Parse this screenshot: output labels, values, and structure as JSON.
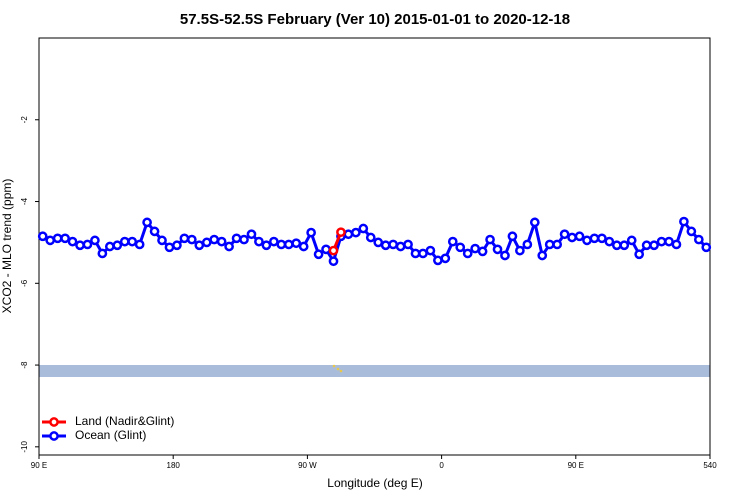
{
  "chart_data": {
    "type": "line",
    "title": "57.5S-52.5S February (Ver 10)   2015-01-01 to 2020-12-18",
    "x_label": "Longitude (deg E)",
    "y_label": "XCO2 - MLO trend (ppm)",
    "xlim": [
      90,
      540
    ],
    "xticks": [
      {
        "value": 90,
        "label": "90 E"
      },
      180,
      {
        "value": 270,
        "label": "90 W"
      },
      {
        "value": 360,
        "label": "0"
      },
      {
        "value": 450,
        "label": "90 E"
      },
      540
    ],
    "ylim": [
      -10.2,
      0
    ],
    "yticks": [
      -2,
      -4,
      -6,
      -8,
      -10
    ],
    "legend": "bottom-left",
    "series": [
      {
        "name": "Land (Nadir&Glint)",
        "color": "#ff0000",
        "x": [
          287.5,
          292.5
        ],
        "values": [
          -5.2,
          -4.75
        ]
      },
      {
        "name": "Ocean (Glint)",
        "color": "#0000ff",
        "x": [
          92.5,
          97.5,
          102.5,
          107.5,
          112.5,
          117.5,
          122.5,
          127.5,
          132.5,
          137.5,
          142.5,
          147.5,
          152.5,
          157.5,
          162.5,
          167.5,
          172.5,
          177.5,
          182.5,
          187.5,
          192.5,
          197.5,
          202.5,
          207.5,
          212.5,
          217.5,
          222.5,
          227.5,
          232.5,
          237.5,
          242.5,
          247.5,
          252.5,
          257.5,
          262.5,
          267.5,
          272.5,
          277.5,
          282.5,
          287.5,
          292.5,
          297.5,
          302.5,
          307.5,
          312.5,
          317.5,
          322.5,
          327.5,
          332.5,
          337.5,
          342.5,
          347.5,
          352.5,
          357.5,
          362.5,
          367.5,
          372.5,
          377.5,
          382.5,
          387.5,
          392.5,
          397.5,
          402.5,
          407.5,
          412.5,
          417.5,
          422.5,
          427.5,
          432.5,
          437.5,
          442.5,
          447.5,
          452.5,
          457.5,
          462.5,
          467.5,
          472.5,
          477.5,
          482.5,
          487.5,
          492.5,
          497.5,
          502.5,
          507.5,
          512.5,
          517.5,
          522.5,
          527.5,
          532.5,
          537.5
        ],
        "values": [
          -4.85,
          -4.95,
          -4.9,
          -4.9,
          -4.98,
          -5.07,
          -5.05,
          -4.95,
          -5.27,
          -5.1,
          -5.07,
          -4.98,
          -4.98,
          -5.05,
          -4.51,
          -4.73,
          -4.95,
          -5.12,
          -5.07,
          -4.9,
          -4.93,
          -5.07,
          -5.0,
          -4.93,
          -4.98,
          -5.1,
          -4.9,
          -4.93,
          -4.8,
          -4.98,
          -5.07,
          -4.98,
          -5.05,
          -5.05,
          -5.02,
          -5.1,
          -4.76,
          -5.29,
          -5.17,
          -5.46,
          -4.85,
          -4.8,
          -4.76,
          -4.66,
          -4.88,
          -5.0,
          -5.07,
          -5.05,
          -5.1,
          -5.05,
          -5.27,
          -5.27,
          -5.2,
          -5.44,
          -5.39,
          -4.98,
          -5.12,
          -5.27,
          -5.15,
          -5.22,
          -4.93,
          -5.17,
          -5.32,
          -4.85,
          -5.2,
          -5.05,
          -4.51,
          -5.32,
          -5.05,
          -5.05,
          -4.8,
          -4.88,
          -4.85,
          -4.95,
          -4.9,
          -4.9,
          -4.98,
          -5.07,
          -5.07,
          -4.95,
          -5.29,
          -5.07,
          -5.07,
          -4.98,
          -4.98,
          -5.05,
          -4.49,
          -4.73,
          -4.93,
          -5.12
        ]
      }
    ]
  }
}
